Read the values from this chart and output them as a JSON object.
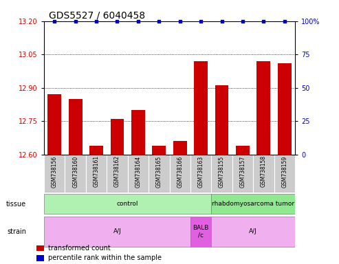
{
  "title": "GDS5527 / 6040458",
  "samples": [
    "GSM738156",
    "GSM738160",
    "GSM738161",
    "GSM738162",
    "GSM738164",
    "GSM738165",
    "GSM738166",
    "GSM738163",
    "GSM738155",
    "GSM738157",
    "GSM738158",
    "GSM738159"
  ],
  "bar_values": [
    12.87,
    12.85,
    12.64,
    12.76,
    12.8,
    12.64,
    12.66,
    13.02,
    12.91,
    12.64,
    13.02,
    13.01
  ],
  "percentile_values": [
    100,
    100,
    100,
    100,
    100,
    100,
    100,
    100,
    100,
    100,
    100,
    100
  ],
  "bar_color": "#cc0000",
  "percentile_color": "#0000cc",
  "ylim_left": [
    12.6,
    13.2
  ],
  "ylim_right": [
    0,
    100
  ],
  "yticks_left": [
    12.6,
    12.75,
    12.9,
    13.05,
    13.2
  ],
  "yticks_right": [
    0,
    25,
    50,
    75,
    100
  ],
  "tissue_groups": [
    {
      "label": "control",
      "start": 0,
      "end": 7,
      "color": "#b0f0b0"
    },
    {
      "label": "rhabdomyosarcoma tumor",
      "start": 8,
      "end": 11,
      "color": "#90e890"
    }
  ],
  "strain_groups": [
    {
      "label": "A/J",
      "start": 0,
      "end": 6,
      "color": "#f0b0f0"
    },
    {
      "label": "BALB\n/c",
      "start": 7,
      "end": 7,
      "color": "#e060e0"
    },
    {
      "label": "A/J",
      "start": 8,
      "end": 11,
      "color": "#f0b0f0"
    }
  ],
  "bg_color": "#ffffff",
  "tick_bg_color": "#cccccc",
  "title_fontsize": 10,
  "axis_color_left": "#cc0000",
  "axis_color_right": "#0000cc",
  "bar_width": 0.65,
  "legend_items": [
    {
      "label": "transformed count",
      "color": "#cc0000"
    },
    {
      "label": "percentile rank within the sample",
      "color": "#0000cc"
    }
  ]
}
